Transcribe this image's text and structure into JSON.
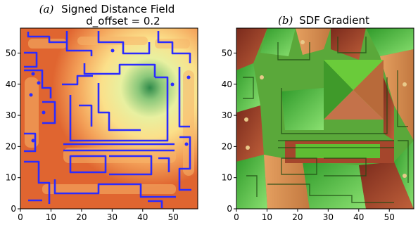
{
  "figure": {
    "panels": [
      {
        "id": "a",
        "tag": "(a)",
        "title_line1": "Signed Distance Field",
        "title_line2": "d_offset = 0.2",
        "type": "heatmap",
        "colormap": "Spectral",
        "contour_color": "#2b2bff",
        "background": "#e06530",
        "xlim": [
          0,
          58
        ],
        "ylim": [
          0,
          58
        ],
        "xticks": [
          0,
          10,
          20,
          30,
          40,
          50
        ],
        "yticks": [
          0,
          10,
          20,
          30,
          40,
          50
        ]
      },
      {
        "id": "b",
        "tag": "(b)",
        "title_line1": "SDF Gradient",
        "type": "heatmap",
        "colors": [
          "#4fc23a",
          "#a44a2c",
          "#e8a060"
        ],
        "background": "#6a9a3a",
        "xlim": [
          0,
          58
        ],
        "ylim": [
          0,
          58
        ],
        "xticks": [
          0,
          10,
          20,
          30,
          40,
          50
        ],
        "yticks": [
          0,
          10,
          20,
          30,
          40,
          50
        ]
      }
    ]
  },
  "chart_data": [
    {
      "type": "heatmap",
      "title": "(a) Signed Distance Field d_offset = 0.2",
      "xlim": [
        0,
        58
      ],
      "ylim": [
        0,
        58
      ],
      "xticks": [
        0,
        10,
        20,
        30,
        40,
        50
      ],
      "yticks": [
        0,
        10,
        20,
        30,
        40,
        50
      ],
      "colormap": "Spectral",
      "grid": false
    },
    {
      "type": "heatmap",
      "title": "(b) SDF Gradient",
      "xlim": [
        0,
        58
      ],
      "ylim": [
        0,
        58
      ],
      "xticks": [
        0,
        10,
        20,
        30,
        40,
        50
      ],
      "yticks": [
        0,
        10,
        20,
        30,
        40,
        50
      ],
      "grid": false
    }
  ]
}
